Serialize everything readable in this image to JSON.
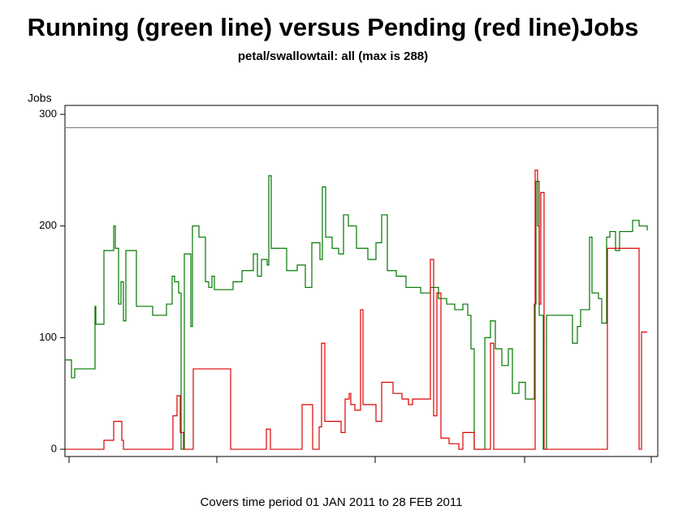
{
  "chart_data": {
    "type": "step-line",
    "title": "Running (green line) versus Pending (red line)Jobs",
    "subtitle": "petal/swallowtail: all (max is 288)",
    "y_label": "Jobs",
    "footer": "Covers time period 01 JAN 2011 to 28 FEB 2011",
    "reference_line": 288,
    "ylim": [
      -6.5,
      308
    ],
    "yticks": [
      0,
      100,
      200,
      300
    ],
    "xlim": [
      -5,
      725
    ],
    "xticks": [
      0,
      182,
      377,
      561,
      717
    ],
    "series": [
      {
        "color": "#007700",
        "x": [
          -5,
          3,
          7,
          32,
          33,
          43,
          55,
          57,
          61,
          64,
          67,
          70,
          83,
          103,
          120,
          127,
          130,
          135,
          138,
          142,
          150,
          152,
          160,
          168,
          172,
          176,
          179,
          202,
          213,
          227,
          232,
          237,
          244,
          246,
          249,
          259,
          268,
          281,
          291,
          299,
          309,
          312,
          316,
          324,
          332,
          338,
          344,
          354,
          368,
          378,
          385,
          392,
          403,
          415,
          433,
          445,
          455,
          465,
          475,
          485,
          491,
          495,
          499,
          512,
          519,
          525,
          533,
          541,
          546,
          554,
          562,
          573,
          575,
          579,
          584,
          588,
          614,
          620,
          626,
          630,
          641,
          644,
          652,
          656,
          662,
          666,
          673,
          678,
          694,
          702,
          712
        ],
        "values": [
          80,
          64,
          72,
          128,
          112,
          178,
          200,
          180,
          130,
          150,
          115,
          178,
          128,
          120,
          130,
          155,
          150,
          140,
          0,
          175,
          110,
          200,
          190,
          150,
          145,
          155,
          143,
          150,
          160,
          175,
          155,
          170,
          165,
          245,
          180,
          180,
          160,
          165,
          145,
          185,
          170,
          235,
          190,
          180,
          175,
          210,
          200,
          180,
          170,
          185,
          210,
          160,
          155,
          145,
          140,
          145,
          135,
          130,
          125,
          130,
          120,
          90,
          0,
          100,
          115,
          90,
          75,
          90,
          50,
          60,
          45,
          130,
          240,
          120,
          0,
          120,
          120,
          95,
          110,
          125,
          190,
          140,
          135,
          113,
          190,
          195,
          178,
          195,
          205,
          200,
          196
        ]
      },
      {
        "color": "#dd0000",
        "x": [
          -5,
          43,
          55,
          65,
          67,
          128,
          133,
          137,
          141,
          153,
          199,
          243,
          248,
          287,
          300,
          308,
          311,
          315,
          335,
          340,
          345,
          347,
          352,
          359,
          362,
          378,
          385,
          399,
          410,
          418,
          423,
          445,
          449,
          453,
          458,
          468,
          480,
          485,
          499,
          519,
          523,
          574,
          577,
          579,
          581,
          585,
          663,
          702,
          705,
          712
        ],
        "values": [
          0,
          8,
          25,
          8,
          0,
          30,
          48,
          15,
          0,
          72,
          0,
          18,
          0,
          40,
          0,
          20,
          95,
          25,
          15,
          45,
          50,
          40,
          35,
          125,
          40,
          25,
          60,
          50,
          45,
          40,
          45,
          170,
          30,
          140,
          10,
          5,
          0,
          15,
          0,
          95,
          0,
          250,
          200,
          130,
          230,
          0,
          180,
          0,
          105,
          105
        ]
      }
    ]
  }
}
